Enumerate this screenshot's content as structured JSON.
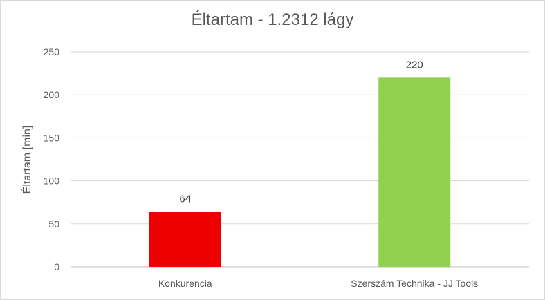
{
  "chart_data": {
    "type": "bar",
    "title": "Éltartam - 1.2312 lágy",
    "xlabel": "",
    "ylabel": "Éltartam [min]",
    "categories": [
      "Konkurencia",
      "Szerszám Technika - JJ Tools"
    ],
    "values": [
      64,
      220
    ],
    "data_labels": [
      "64",
      "220"
    ],
    "colors": [
      "#ee0000",
      "#92d050"
    ],
    "ylim": [
      0,
      250
    ],
    "yticks": [
      0,
      50,
      100,
      150,
      200,
      250
    ],
    "grid": true,
    "legend": "none"
  }
}
